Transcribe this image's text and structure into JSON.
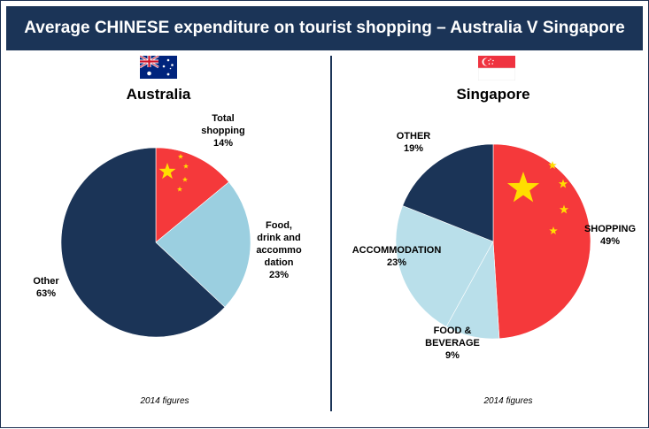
{
  "title": "Average CHINESE expenditure on tourist shopping – Australia V Singapore",
  "colors": {
    "navy": "#1b3457",
    "red": "#f5393b",
    "light_blue": "#9bcfe0",
    "pale_blue": "#b9dfea",
    "star": "#ffde00"
  },
  "chart_data": [
    {
      "type": "pie",
      "title": "Australia",
      "flag_icon": "australia-flag-icon",
      "slices": [
        {
          "label_lines": [
            "Total",
            "shopping"
          ],
          "value_text": "14%",
          "value": 14,
          "color": "#f5393b",
          "stars": true
        },
        {
          "label_lines": [
            "Food,",
            "drink and",
            "accommo",
            "dation"
          ],
          "value_text": "23%",
          "value": 23,
          "color": "#9bcfe0",
          "stars": false
        },
        {
          "label_lines": [
            "Other"
          ],
          "value_text": "63%",
          "value": 63,
          "color": "#1b3457",
          "stars": false
        }
      ],
      "note": "2014 figures"
    },
    {
      "type": "pie",
      "title": "Singapore",
      "flag_icon": "singapore-flag-icon",
      "slices": [
        {
          "label_lines": [
            "SHOPPING"
          ],
          "value_text": "49%",
          "value": 49,
          "color": "#f5393b",
          "stars": true
        },
        {
          "label_lines": [
            "FOOD &",
            "BEVERAGE"
          ],
          "value_text": "9%",
          "value": 9,
          "color": "#b9dfea",
          "stars": false
        },
        {
          "label_lines": [
            "ACCOMMODATION"
          ],
          "value_text": "23%",
          "value": 23,
          "color": "#b9dfea",
          "stars": false
        },
        {
          "label_lines": [
            "OTHER"
          ],
          "value_text": "19%",
          "value": 19,
          "color": "#1b3457",
          "stars": false
        }
      ],
      "note": "2014 figures"
    }
  ]
}
